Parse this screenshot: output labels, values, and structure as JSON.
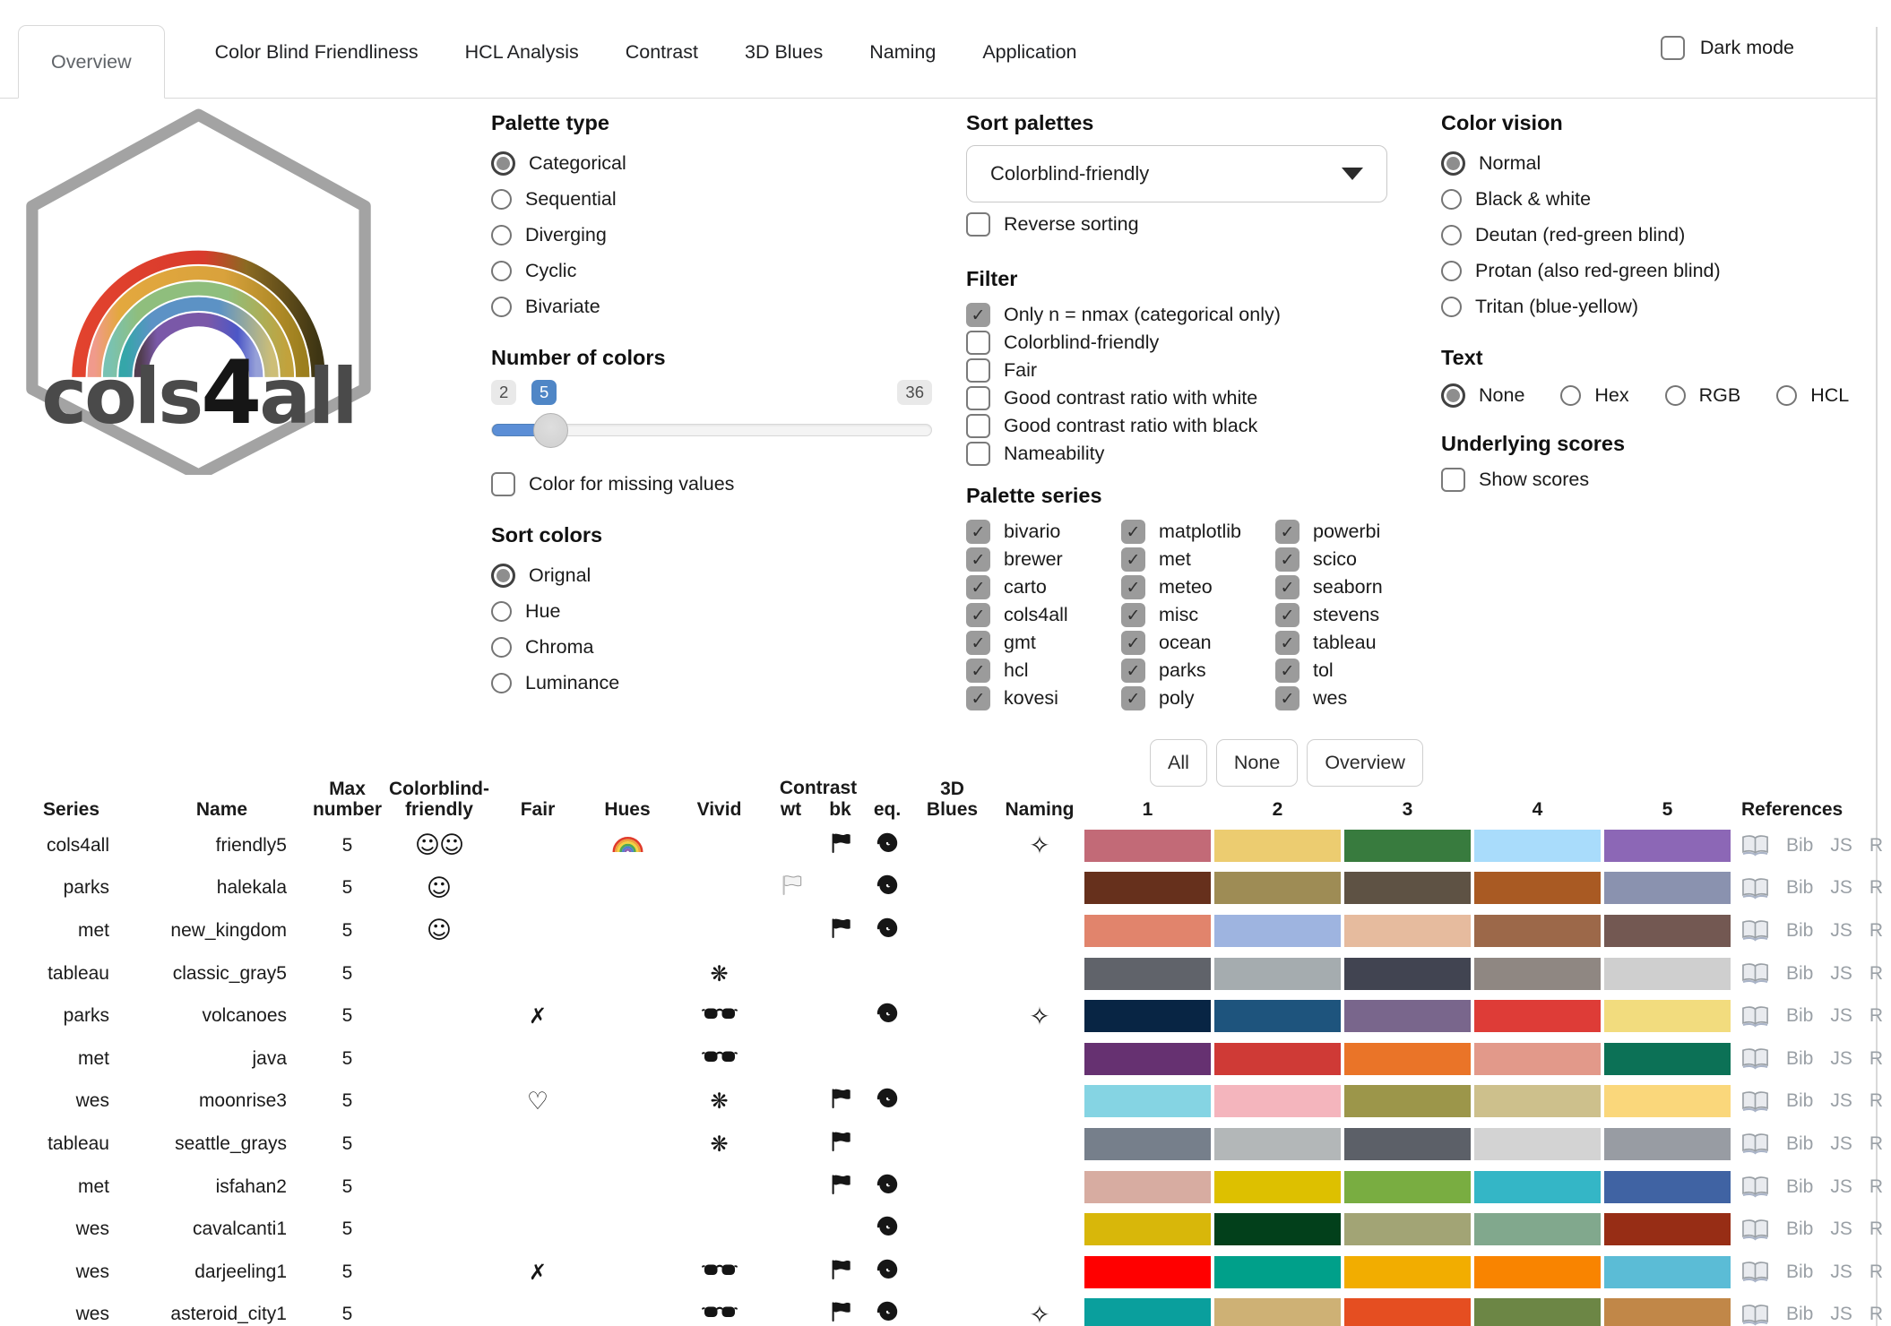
{
  "tabs": {
    "items": [
      {
        "label": "Overview",
        "active": true
      },
      {
        "label": "Color Blind Friendliness",
        "active": false
      },
      {
        "label": "HCL Analysis",
        "active": false
      },
      {
        "label": "Contrast",
        "active": false
      },
      {
        "label": "3D Blues",
        "active": false
      },
      {
        "label": "Naming",
        "active": false
      },
      {
        "label": "Application",
        "active": false
      }
    ],
    "dark_mode_label": "Dark mode",
    "dark_mode_checked": false
  },
  "logo": {
    "wordmark": "cols4all",
    "wordmark_pre": "cols",
    "wordmark_num": "4",
    "wordmark_post": "all"
  },
  "controls": {
    "palette_type": {
      "heading": "Palette type",
      "options": [
        "Categorical",
        "Sequential",
        "Diverging",
        "Cyclic",
        "Bivariate"
      ],
      "selected": "Categorical"
    },
    "number_of_colors": {
      "heading": "Number of colors",
      "min": "2",
      "max": "36",
      "value": "5",
      "missing_label": "Color for missing values",
      "missing_checked": false
    },
    "sort_colors": {
      "heading": "Sort colors",
      "options": [
        "Orignal",
        "Hue",
        "Chroma",
        "Luminance"
      ],
      "selected": "Orignal"
    },
    "sort_palettes": {
      "heading": "Sort palettes",
      "selected_option": "Colorblind-friendly",
      "reverse_label": "Reverse sorting",
      "reverse_checked": false
    },
    "filter": {
      "heading": "Filter",
      "options": [
        {
          "label": "Only n = nmax (categorical only)",
          "checked": true
        },
        {
          "label": "Colorblind-friendly",
          "checked": false
        },
        {
          "label": "Fair",
          "checked": false
        },
        {
          "label": "Good contrast ratio with white",
          "checked": false
        },
        {
          "label": "Good contrast ratio with black",
          "checked": false
        },
        {
          "label": "Nameability",
          "checked": false
        }
      ]
    },
    "palette_series": {
      "heading": "Palette series",
      "all_checked": true,
      "columns": [
        [
          "bivario",
          "brewer",
          "carto",
          "cols4all",
          "gmt",
          "hcl",
          "kovesi"
        ],
        [
          "matplotlib",
          "met",
          "meteo",
          "misc",
          "ocean",
          "parks",
          "poly"
        ],
        [
          "powerbi",
          "scico",
          "seaborn",
          "stevens",
          "tableau",
          "tol",
          "wes"
        ]
      ],
      "buttons": [
        "All",
        "None",
        "Overview"
      ]
    },
    "color_vision": {
      "heading": "Color vision",
      "options": [
        "Normal",
        "Black & white",
        "Deutan (red-green blind)",
        "Protan (also red-green blind)",
        "Tritan (blue-yellow)"
      ],
      "selected": "Normal"
    },
    "text": {
      "heading": "Text",
      "options": [
        "None",
        "Hex",
        "RGB",
        "HCL"
      ],
      "selected": "None"
    },
    "underlying_scores": {
      "heading": "Underlying scores",
      "show_label": "Show scores",
      "show_checked": false
    }
  },
  "table": {
    "headers": {
      "series": "Series",
      "name": "Name",
      "max_top": "Max",
      "max_bottom": "number",
      "cbf_top": "Colorblind-",
      "cbf_bottom": "friendly",
      "fair": "Fair",
      "hues": "Hues",
      "vivid": "Vivid",
      "contrast": "Contrast",
      "wt": "wt",
      "bk": "bk",
      "eq": "eq.",
      "blues_top": "3D",
      "blues_bottom": "Blues",
      "naming": "Naming",
      "references": "References"
    },
    "swatch_numbers": [
      "1",
      "2",
      "3",
      "4",
      "5"
    ],
    "reference_links": [
      "Bib",
      "JS",
      "R"
    ],
    "icon_legend": {
      "colorblind_friendly": "smiley-icon",
      "fair_no": "cross-icon",
      "fair_almost": "heart-icon",
      "hues_rainbow": "rainbow-icon",
      "vivid_high": "sunglasses-icon",
      "vivid_low": "pastel-asterisk-icon",
      "contrast_white": "white-flag-icon",
      "contrast_black": "black-flag-icon",
      "contrast_equal": "spiral-icon",
      "naming": "sparkle-icon",
      "reference": "open-book-icon"
    },
    "rows": [
      {
        "series": "cols4all",
        "name": "friendly5",
        "max": "5",
        "cbf": 2,
        "fair": "",
        "hues": "rainbow",
        "vivid": "",
        "wt": false,
        "bk": true,
        "eq": true,
        "naming": true,
        "colors": [
          "#C26A77",
          "#ECCC70",
          "#387B3E",
          "#A9DCFB",
          "#8C67B6"
        ]
      },
      {
        "series": "parks",
        "name": "halekala",
        "max": "5",
        "cbf": 1,
        "fair": "",
        "hues": "",
        "vivid": "",
        "wt": true,
        "bk": false,
        "eq": true,
        "naming": false,
        "colors": [
          "#66301C",
          "#9E8C55",
          "#5E5244",
          "#A95A23",
          "#8A92AF"
        ]
      },
      {
        "series": "met",
        "name": "new_kingdom",
        "max": "5",
        "cbf": 1,
        "fair": "",
        "hues": "",
        "vivid": "",
        "wt": false,
        "bk": true,
        "eq": true,
        "naming": false,
        "colors": [
          "#E1846C",
          "#9EB4E0",
          "#E6BB9E",
          "#9C6849",
          "#735852"
        ]
      },
      {
        "series": "tableau",
        "name": "classic_gray5",
        "max": "5",
        "cbf": 0,
        "fair": "",
        "hues": "",
        "vivid": "snow",
        "wt": false,
        "bk": false,
        "eq": false,
        "naming": false,
        "colors": [
          "#60636A",
          "#A5ACAF",
          "#414451",
          "#8F8782",
          "#CFCFCF"
        ]
      },
      {
        "series": "parks",
        "name": "volcanoes",
        "max": "5",
        "cbf": 0,
        "fair": "cross",
        "hues": "",
        "vivid": "sunglasses",
        "wt": false,
        "bk": false,
        "eq": true,
        "naming": true,
        "colors": [
          "#082544",
          "#1E547D",
          "#79668C",
          "#DE3C37",
          "#F2DC7E"
        ]
      },
      {
        "series": "met",
        "name": "java",
        "max": "5",
        "cbf": 0,
        "fair": "",
        "hues": "",
        "vivid": "sunglasses",
        "wt": false,
        "bk": false,
        "eq": false,
        "naming": false,
        "colors": [
          "#663171",
          "#CF3A36",
          "#EA7428",
          "#E2998A",
          "#0C7156"
        ]
      },
      {
        "series": "wes",
        "name": "moonrise3",
        "max": "5",
        "cbf": 0,
        "fair": "heart",
        "hues": "",
        "vivid": "snow",
        "wt": false,
        "bk": true,
        "eq": true,
        "naming": false,
        "colors": [
          "#85D4E3",
          "#F4B5BD",
          "#9C964A",
          "#CDC08C",
          "#FAD77B"
        ]
      },
      {
        "series": "tableau",
        "name": "seattle_grays",
        "max": "5",
        "cbf": 0,
        "fair": "",
        "hues": "",
        "vivid": "snow",
        "wt": false,
        "bk": true,
        "eq": false,
        "naming": false,
        "colors": [
          "#767F8B",
          "#B3B7B8",
          "#5C6068",
          "#D3D3D3",
          "#989CA3"
        ]
      },
      {
        "series": "met",
        "name": "isfahan2",
        "max": "5",
        "cbf": 0,
        "fair": "",
        "hues": "",
        "vivid": "",
        "wt": false,
        "bk": true,
        "eq": true,
        "naming": false,
        "colors": [
          "#D7ACA1",
          "#DDC000",
          "#79AD41",
          "#34B6C6",
          "#4063A3"
        ]
      },
      {
        "series": "wes",
        "name": "cavalcanti1",
        "max": "5",
        "cbf": 0,
        "fair": "",
        "hues": "",
        "vivid": "",
        "wt": false,
        "bk": false,
        "eq": true,
        "naming": false,
        "colors": [
          "#D8B70A",
          "#02401B",
          "#A2A475",
          "#81A88D",
          "#972D15"
        ]
      },
      {
        "series": "wes",
        "name": "darjeeling1",
        "max": "5",
        "cbf": 0,
        "fair": "cross",
        "hues": "",
        "vivid": "sunglasses",
        "wt": false,
        "bk": true,
        "eq": true,
        "naming": false,
        "colors": [
          "#FF0000",
          "#00A08A",
          "#F2AD00",
          "#F98400",
          "#5BBCD6"
        ]
      },
      {
        "series": "wes",
        "name": "asteroid_city1",
        "max": "5",
        "cbf": 0,
        "fair": "",
        "hues": "",
        "vivid": "sunglasses",
        "wt": false,
        "bk": true,
        "eq": true,
        "naming": true,
        "colors": [
          "#0A9F9D",
          "#CEB175",
          "#E54E21",
          "#6C8645",
          "#C18748"
        ]
      }
    ]
  },
  "colors": {
    "accent_blue": "#5B8ED6",
    "badge_blue": "#4F86C6",
    "border_gray": "#D9D9D9",
    "ref_gray": "#9AA0A6",
    "check_gray": "#9B9B9B"
  }
}
